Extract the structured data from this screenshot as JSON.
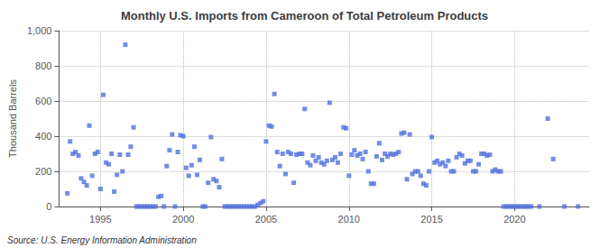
{
  "chart_data": {
    "type": "scatter",
    "title": "Monthly U.S. Imports from Cameroon of Total Petroleum Products",
    "ylabel": "Thousand Barrels",
    "annotations": [
      "Source: U.S. Energy Information Administration"
    ],
    "marker": "square",
    "grid": true,
    "xlim": [
      1992.5,
      2024.5
    ],
    "xticks": [
      1995,
      2000,
      2005,
      2010,
      2015,
      2020
    ],
    "ylim": [
      0,
      1000
    ],
    "yticks": [
      0,
      200,
      400,
      600,
      800,
      {
        "value": 1000,
        "label": "1,000"
      }
    ],
    "x": [
      1993.0,
      1993.17,
      1993.33,
      1993.5,
      1993.67,
      1993.83,
      1994.0,
      1994.17,
      1994.33,
      1994.5,
      1994.67,
      1994.83,
      1995.0,
      1995.17,
      1995.33,
      1995.5,
      1995.67,
      1995.83,
      1996.0,
      1996.17,
      1996.33,
      1996.5,
      1996.67,
      1996.83,
      1997.0,
      1997.17,
      1997.33,
      1997.5,
      1997.67,
      1997.83,
      1998.0,
      1998.17,
      1998.33,
      1998.5,
      1998.67,
      1998.83,
      1999.0,
      1999.17,
      1999.33,
      1999.5,
      1999.67,
      1999.83,
      2000.0,
      2000.17,
      2000.33,
      2000.5,
      2000.67,
      2000.83,
      2001.0,
      2001.17,
      2001.33,
      2001.5,
      2001.67,
      2001.83,
      2002.0,
      2002.17,
      2002.33,
      2002.5,
      2002.67,
      2002.83,
      2003.0,
      2003.17,
      2003.33,
      2003.5,
      2003.67,
      2003.83,
      2004.0,
      2004.17,
      2004.33,
      2004.5,
      2004.67,
      2004.83,
      2005.0,
      2005.17,
      2005.33,
      2005.5,
      2005.67,
      2005.83,
      2006.0,
      2006.17,
      2006.33,
      2006.5,
      2006.67,
      2006.83,
      2007.0,
      2007.17,
      2007.33,
      2007.5,
      2007.67,
      2007.83,
      2008.0,
      2008.17,
      2008.33,
      2008.5,
      2008.67,
      2008.83,
      2009.0,
      2009.17,
      2009.33,
      2009.5,
      2009.67,
      2009.83,
      2010.0,
      2010.17,
      2010.33,
      2010.5,
      2010.67,
      2010.83,
      2011.0,
      2011.17,
      2011.33,
      2011.5,
      2011.67,
      2011.83,
      2012.0,
      2012.17,
      2012.33,
      2012.5,
      2012.67,
      2012.83,
      2013.0,
      2013.17,
      2013.33,
      2013.5,
      2013.67,
      2013.83,
      2014.0,
      2014.17,
      2014.33,
      2014.5,
      2014.67,
      2014.83,
      2015.0,
      2015.17,
      2015.33,
      2015.5,
      2015.67,
      2015.83,
      2016.0,
      2016.17,
      2016.33,
      2016.5,
      2016.67,
      2016.83,
      2017.0,
      2017.17,
      2017.33,
      2017.5,
      2017.67,
      2017.83,
      2018.0,
      2018.17,
      2018.33,
      2018.5,
      2018.67,
      2018.83,
      2019.0,
      2019.17,
      2019.33,
      2019.5,
      2019.67,
      2019.83,
      2020.0,
      2020.17,
      2020.33,
      2020.5,
      2020.67,
      2020.83,
      2021.0,
      2021.5,
      2022.0,
      2022.33,
      2023.0,
      2023.83
    ],
    "values": [
      75,
      370,
      300,
      310,
      290,
      160,
      140,
      120,
      460,
      175,
      300,
      310,
      100,
      635,
      250,
      240,
      300,
      85,
      180,
      295,
      200,
      920,
      295,
      340,
      450,
      0,
      0,
      0,
      0,
      0,
      0,
      0,
      0,
      55,
      60,
      0,
      230,
      320,
      410,
      0,
      310,
      405,
      400,
      220,
      175,
      235,
      340,
      180,
      265,
      0,
      0,
      135,
      395,
      155,
      145,
      110,
      270,
      0,
      0,
      0,
      0,
      0,
      0,
      0,
      0,
      0,
      0,
      0,
      0,
      10,
      20,
      30,
      370,
      460,
      455,
      640,
      310,
      230,
      300,
      185,
      310,
      300,
      135,
      295,
      300,
      300,
      555,
      250,
      235,
      290,
      260,
      280,
      250,
      240,
      260,
      590,
      265,
      280,
      250,
      300,
      450,
      445,
      175,
      295,
      320,
      290,
      300,
      270,
      310,
      200,
      130,
      130,
      285,
      360,
      265,
      300,
      285,
      300,
      295,
      300,
      310,
      415,
      420,
      155,
      410,
      185,
      200,
      200,
      175,
      130,
      120,
      200,
      395,
      250,
      260,
      240,
      250,
      230,
      260,
      200,
      200,
      280,
      300,
      290,
      245,
      260,
      260,
      200,
      200,
      240,
      300,
      300,
      290,
      295,
      200,
      210,
      200,
      200,
      0,
      0,
      0,
      0,
      0,
      0,
      0,
      0,
      0,
      0,
      0,
      0,
      500,
      270,
      0,
      0
    ]
  }
}
